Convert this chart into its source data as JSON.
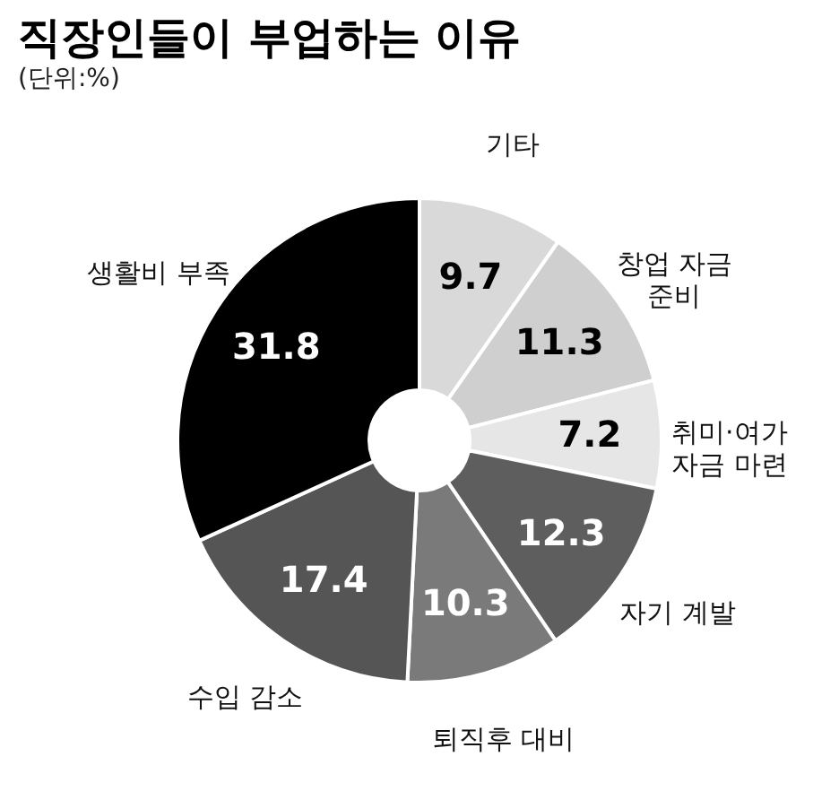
{
  "chart_data": {
    "type": "donut",
    "title": "직장인들이 부업하는 이유",
    "subtitle": "(단위:%)",
    "categories": [
      "기타",
      "창업 자금 준비",
      "취미·여가 자금 마련",
      "자기 계발",
      "퇴직후 대비",
      "수입 감소",
      "생활비 부족"
    ],
    "values": [
      9.7,
      11.3,
      7.2,
      12.3,
      10.3,
      17.4,
      31.8
    ],
    "colors": [
      "#d9d9d9",
      "#cfcfcf",
      "#e6e6e6",
      "#5e5e5e",
      "#7a7a7a",
      "#555555",
      "#000000"
    ],
    "data_labels": true
  }
}
